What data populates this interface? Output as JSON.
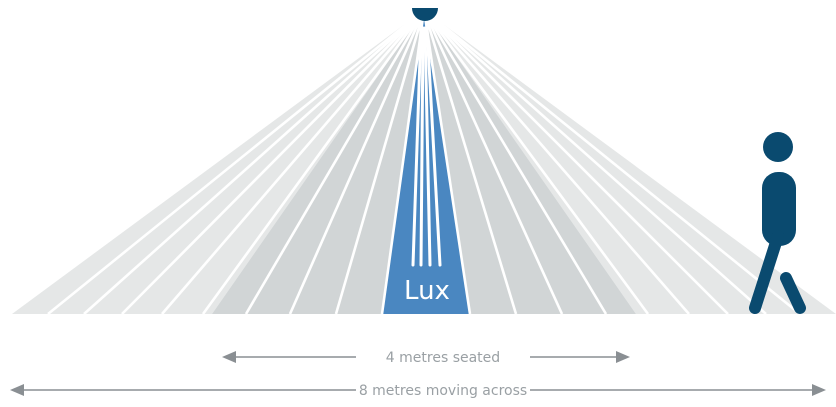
{
  "zone_label": "Lux",
  "seated": {
    "label": "4 metres seated"
  },
  "moving": {
    "label": "8 metres moving across"
  },
  "colors": {
    "outer_fan": "#e5e7e7",
    "inner_fan": "#d1d5d6",
    "lux_zone": "#4a87c1",
    "person": "#0a4a6f",
    "sensor": "#0a4a6f",
    "arrow": "#8a8f93",
    "label_text": "#9aa0a4"
  },
  "icons": {
    "sensor": "ceiling-sensor-icon",
    "person": "walking-person-icon"
  }
}
